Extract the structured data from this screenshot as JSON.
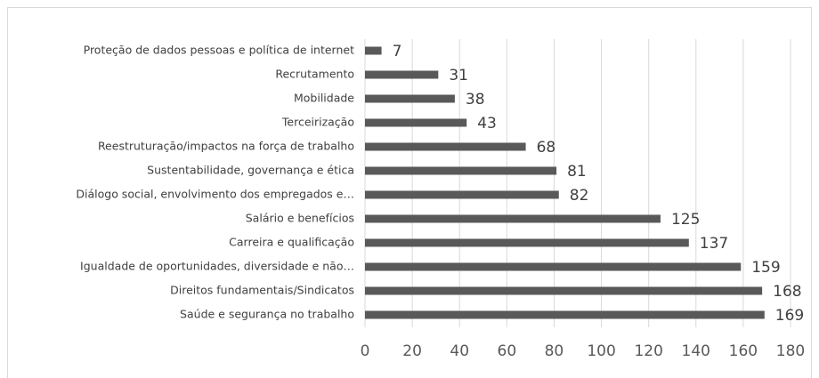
{
  "chart_data": {
    "type": "bar",
    "horizontal": true,
    "categories": [
      "Proteção de dados pessoas e política de internet",
      "Recrutamento",
      "Mobilidade",
      "Terceirização",
      "Reestruturação/impactos na força de trabalho",
      "Sustentabilidade, governança e ética",
      "Diálogo social, envolvimento dos empregados e…",
      "Salário e benefícios",
      "Carreira e qualificação",
      "Igualdade de oportunidades, diversidade e não…",
      "Direitos fundamentais/Sindicatos",
      "Saúde e segurança no trabalho"
    ],
    "values": [
      7,
      31,
      38,
      43,
      68,
      81,
      82,
      125,
      137,
      159,
      168,
      169
    ],
    "color": "#595959",
    "xlim": [
      0,
      180
    ],
    "xticks": [
      0,
      20,
      40,
      60,
      80,
      100,
      120,
      140,
      160,
      180
    ],
    "grid": true
  }
}
